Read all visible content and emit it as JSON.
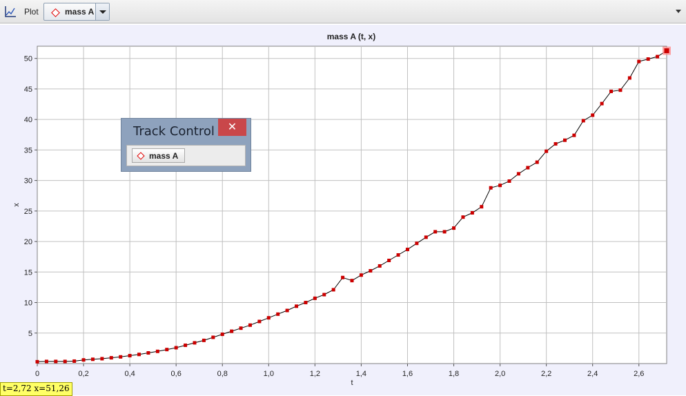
{
  "toolbar": {
    "plot_label": "Plot",
    "track_selector": {
      "selected": "mass A",
      "marker_color": "#e00000"
    },
    "plot_icon": "line-graph-icon",
    "menu_icon": "dropdown-arrow-icon"
  },
  "readout": {
    "text": "t=2,72  x=51,26"
  },
  "track_control": {
    "title": "Track Control",
    "close_icon": "close-icon",
    "items": [
      {
        "label": "mass A",
        "marker": "diamond",
        "color": "#e00000"
      }
    ]
  },
  "colors": {
    "marker": "#cc0000",
    "line": "#000000",
    "grid": "#c0c0c0",
    "panel": "#f0f0fc"
  },
  "chart_data": {
    "type": "line",
    "title": "mass A (t, x)",
    "xlabel": "t",
    "ylabel": "x",
    "xlim": [
      0,
      2.72
    ],
    "ylim": [
      0,
      52
    ],
    "xticks": [
      0,
      0.2,
      0.4,
      0.6,
      0.8,
      1.0,
      1.2,
      1.4,
      1.6,
      1.8,
      2.0,
      2.2,
      2.4,
      2.6
    ],
    "xtick_labels": [
      "0",
      "0,2",
      "0,4",
      "0,6",
      "0,8",
      "1,0",
      "1,2",
      "1,4",
      "1,6",
      "1,8",
      "2,0",
      "2,2",
      "2,4",
      "2,6"
    ],
    "yticks": [
      5,
      10,
      15,
      20,
      25,
      30,
      35,
      40,
      45,
      50
    ],
    "ytick_labels": [
      "5",
      "10",
      "15",
      "20",
      "25",
      "30",
      "35",
      "40",
      "45",
      "50"
    ],
    "grid": true,
    "series": [
      {
        "x": [
          0,
          0.04,
          0.08,
          0.12,
          0.16,
          0.2,
          0.24,
          0.28,
          0.32,
          0.36,
          0.4,
          0.44,
          0.48,
          0.52,
          0.56,
          0.6,
          0.64,
          0.68,
          0.72,
          0.76,
          0.8,
          0.84,
          0.88,
          0.92,
          0.96,
          1.0,
          1.04,
          1.08,
          1.12,
          1.16,
          1.2,
          1.24,
          1.28,
          1.32,
          1.36,
          1.4,
          1.44,
          1.48,
          1.52,
          1.56,
          1.6,
          1.64,
          1.68,
          1.72,
          1.76,
          1.8,
          1.84,
          1.88,
          1.92,
          1.96,
          2.0,
          2.04,
          2.08,
          2.12,
          2.16,
          2.2,
          2.24,
          2.28,
          2.32,
          2.36,
          2.4,
          2.44,
          2.48,
          2.52,
          2.56,
          2.6,
          2.64,
          2.68,
          2.72
        ],
        "y": [
          0.3,
          0.35,
          0.35,
          0.35,
          0.4,
          0.6,
          0.7,
          0.8,
          0.95,
          1.1,
          1.3,
          1.5,
          1.75,
          2.0,
          2.3,
          2.6,
          3.0,
          3.4,
          3.8,
          4.3,
          4.8,
          5.3,
          5.8,
          6.3,
          6.9,
          7.5,
          8.1,
          8.7,
          9.4,
          10.0,
          10.7,
          11.3,
          12.1,
          14.1,
          13.6,
          14.5,
          15.2,
          16.0,
          16.9,
          17.8,
          18.7,
          19.7,
          20.7,
          21.6,
          21.6,
          22.2,
          24.0,
          24.7,
          25.7,
          28.8,
          29.2,
          29.9,
          31.1,
          32.1,
          33.0,
          34.8,
          36.0,
          36.6,
          37.4,
          39.8,
          40.7,
          42.6,
          44.6,
          44.8,
          46.8,
          49.5,
          49.9,
          50.3,
          51.26
        ]
      }
    ]
  }
}
